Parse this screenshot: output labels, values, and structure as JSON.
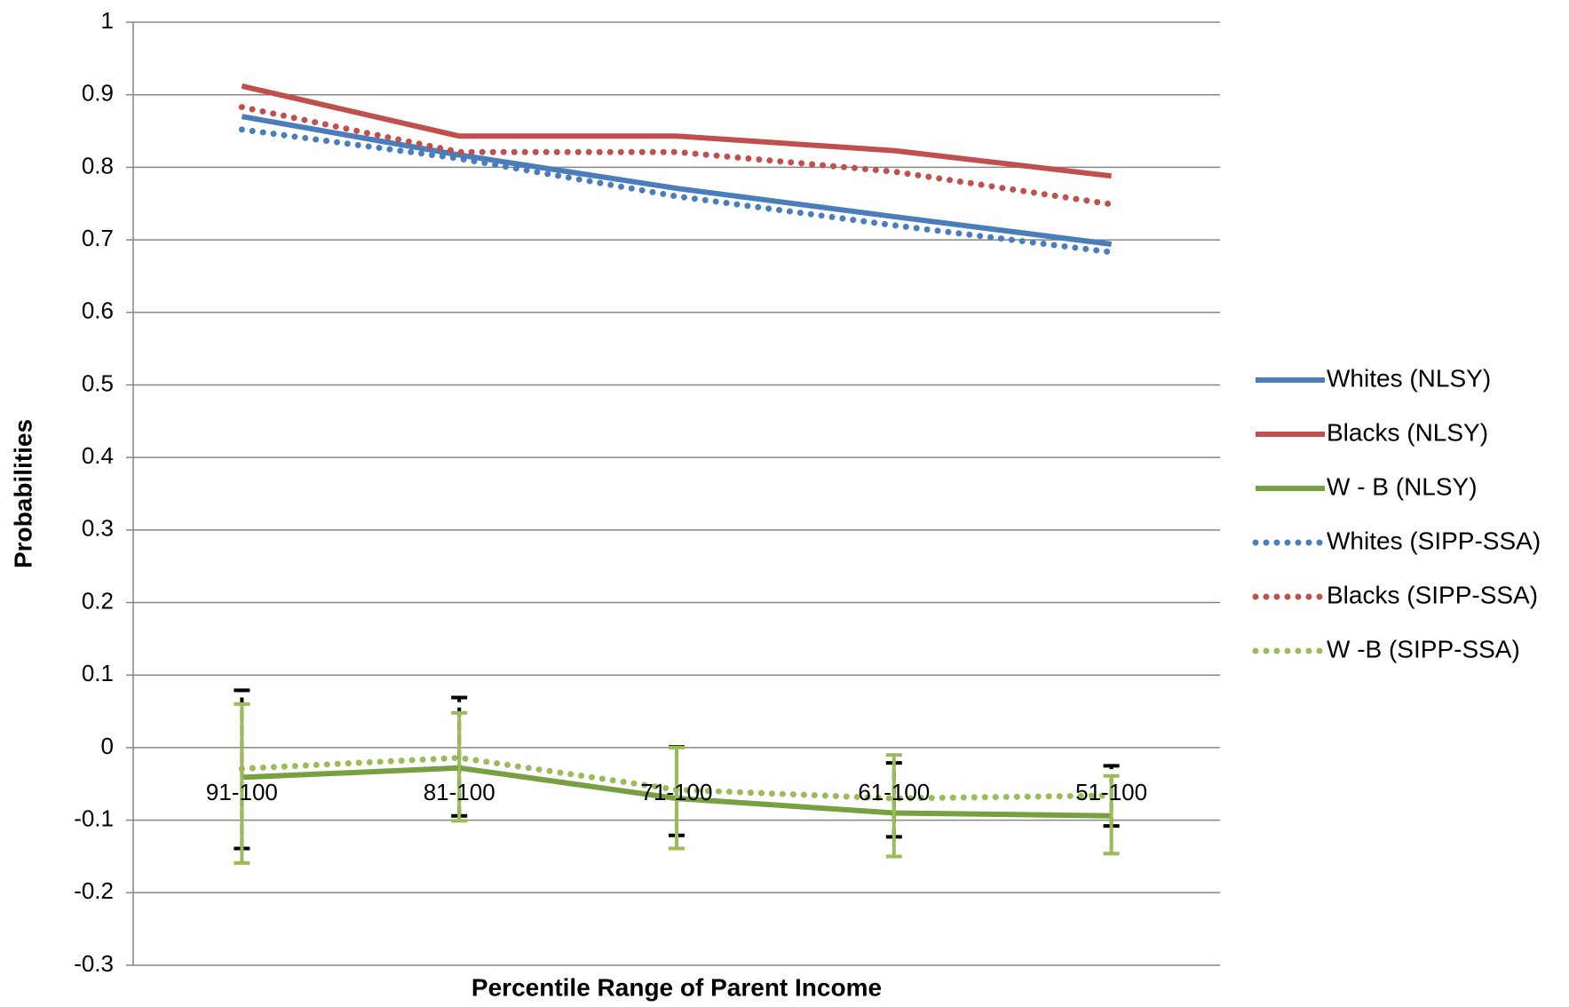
{
  "chart_data": {
    "type": "line",
    "x_label": "Percentile Range of  Parent Income",
    "y_label": "Probabilities",
    "categories": [
      "91-100",
      "81-100",
      "71-100",
      "61-100",
      "51-100"
    ],
    "ylim": [
      -0.3,
      1
    ],
    "yticks": [
      -0.3,
      -0.2,
      -0.1,
      0,
      0.1,
      0.2,
      0.3,
      0.4,
      0.5,
      0.6,
      0.7,
      0.8,
      0.9,
      1
    ],
    "grid": true,
    "legend": "right",
    "series": [
      {
        "name": "Whites (NLSY)",
        "color": "#4a7ebb",
        "style": "solid",
        "values": [
          0.87,
          0.817,
          0.771,
          0.732,
          0.694
        ]
      },
      {
        "name": "Blacks (NLSY)",
        "color": "#c0504d",
        "style": "solid",
        "values": [
          0.912,
          0.843,
          0.843,
          0.823,
          0.788
        ]
      },
      {
        "name": "W - B (NLSY)",
        "color": "#77a040",
        "style": "solid",
        "values": [
          -0.041,
          -0.028,
          -0.07,
          -0.09,
          -0.094
        ],
        "error_color": "#000000",
        "error_lower": [
          -0.139,
          -0.094,
          -0.121,
          -0.123,
          -0.108
        ],
        "error_upper": [
          0.079,
          0.069,
          0.001,
          -0.021,
          -0.025
        ]
      },
      {
        "name": "Whites (SIPP-SSA)",
        "color": "#4a7ebb",
        "style": "dotted",
        "values": [
          0.852,
          0.812,
          0.76,
          0.72,
          0.683
        ]
      },
      {
        "name": "Blacks (SIPP-SSA)",
        "color": "#c0504d",
        "style": "dotted",
        "values": [
          0.883,
          0.821,
          0.821,
          0.794,
          0.749
        ]
      },
      {
        "name": "W -B (SIPP-SSA)",
        "color": "#9bbb59",
        "style": "dotted",
        "values": [
          -0.029,
          -0.014,
          -0.058,
          -0.07,
          -0.066
        ],
        "error_color": "#9bbb59",
        "error_lower": [
          -0.159,
          -0.101,
          -0.139,
          -0.15,
          -0.146
        ],
        "error_upper": [
          0.06,
          0.048,
          0,
          -0.01,
          -0.039
        ]
      }
    ]
  }
}
